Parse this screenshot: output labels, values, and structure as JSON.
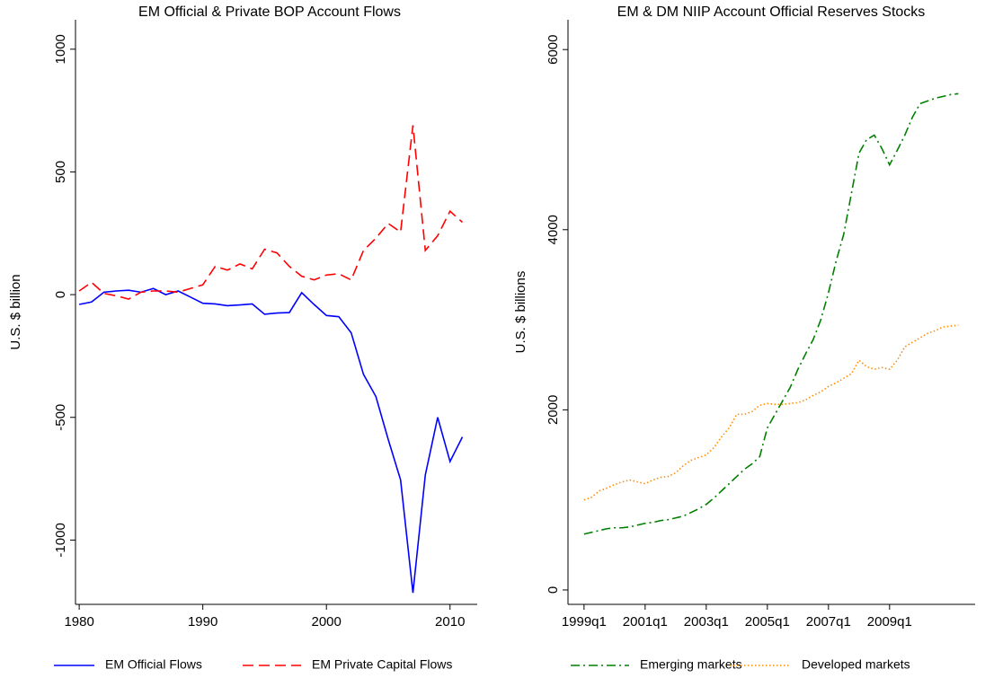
{
  "chart_data": [
    {
      "type": "line",
      "title": "EM Official & Private BOP Account Flows",
      "y_label": "U.S. $ billion",
      "x": [
        1980,
        1981,
        1982,
        1983,
        1984,
        1985,
        1986,
        1987,
        1988,
        1989,
        1990,
        1991,
        1992,
        1993,
        1994,
        1995,
        1996,
        1997,
        1998,
        1999,
        2000,
        2001,
        2002,
        2003,
        2004,
        2005,
        2006,
        2007,
        2008,
        2009,
        2010,
        2011
      ],
      "series": [
        {
          "name": "EM Official Flows",
          "color": "#0000ff",
          "line_style": "solid",
          "values": [
            -40,
            -30,
            10,
            15,
            18,
            10,
            25,
            0,
            15,
            -10,
            -35,
            -38,
            -45,
            -42,
            -38,
            -80,
            -75,
            -73,
            8,
            -40,
            -85,
            -90,
            -155,
            -325,
            -415,
            -590,
            -755,
            -1215,
            -735,
            -500,
            -680,
            -580
          ]
        },
        {
          "name": "EM Private Capital Flows",
          "color": "#ff0000",
          "line_style": "dashed",
          "values": [
            15,
            50,
            5,
            -5,
            -18,
            10,
            15,
            15,
            10,
            25,
            40,
            115,
            100,
            125,
            105,
            185,
            170,
            115,
            75,
            60,
            80,
            85,
            60,
            180,
            230,
            290,
            255,
            690,
            180,
            240,
            340,
            295
          ]
        }
      ],
      "xlim": [
        1979.7,
        2012.2
      ],
      "xticks": [
        1980,
        1990,
        2000,
        2010
      ],
      "ylim": [
        -1262,
        1120
      ],
      "yticks": [
        -1000,
        -500,
        0,
        500,
        1000
      ]
    },
    {
      "type": "line",
      "title": "EM & DM NIIP Account Official Reserves Stocks",
      "y_label": "U.S. $ billions",
      "categories": [
        "1999q1",
        null,
        null,
        null,
        null,
        null,
        null,
        null,
        "2001q1",
        null,
        null,
        null,
        null,
        null,
        null,
        null,
        "2003q1",
        null,
        null,
        null,
        null,
        null,
        null,
        null,
        "2005q1",
        null,
        null,
        null,
        null,
        null,
        null,
        null,
        "2007q1",
        null,
        null,
        null,
        null,
        null,
        null,
        null,
        "2009q1",
        null,
        null,
        null,
        null,
        null,
        null,
        null,
        null,
        null
      ],
      "series": [
        {
          "name": "Emerging markets",
          "color": "#008000",
          "line_style": "dashdot",
          "values": [
            620,
            640,
            660,
            680,
            690,
            690,
            700,
            720,
            740,
            750,
            770,
            780,
            800,
            820,
            860,
            900,
            950,
            1020,
            1100,
            1180,
            1260,
            1340,
            1400,
            1480,
            1800,
            1950,
            2100,
            2250,
            2450,
            2620,
            2780,
            3000,
            3300,
            3650,
            3950,
            4400,
            4850,
            5000,
            5050,
            4900,
            4720,
            4880,
            5050,
            5250,
            5400,
            5430,
            5460,
            5480,
            5500,
            5510
          ]
        },
        {
          "name": "Developed markets",
          "color": "#ff8c00",
          "line_style": "dotted",
          "values": [
            1000,
            1030,
            1100,
            1130,
            1170,
            1200,
            1220,
            1200,
            1180,
            1220,
            1250,
            1260,
            1300,
            1380,
            1440,
            1470,
            1500,
            1580,
            1700,
            1800,
            1950,
            1950,
            1980,
            2050,
            2070,
            2060,
            2060,
            2070,
            2080,
            2110,
            2160,
            2200,
            2260,
            2300,
            2350,
            2400,
            2550,
            2480,
            2450,
            2470,
            2450,
            2550,
            2700,
            2750,
            2800,
            2850,
            2880,
            2920,
            2930,
            2940
          ]
        }
      ],
      "xlim": [
        -2.1,
        51.2
      ],
      "ylim": [
        -160,
        6331
      ],
      "yticks": [
        0,
        2000,
        4000,
        6000
      ]
    }
  ]
}
